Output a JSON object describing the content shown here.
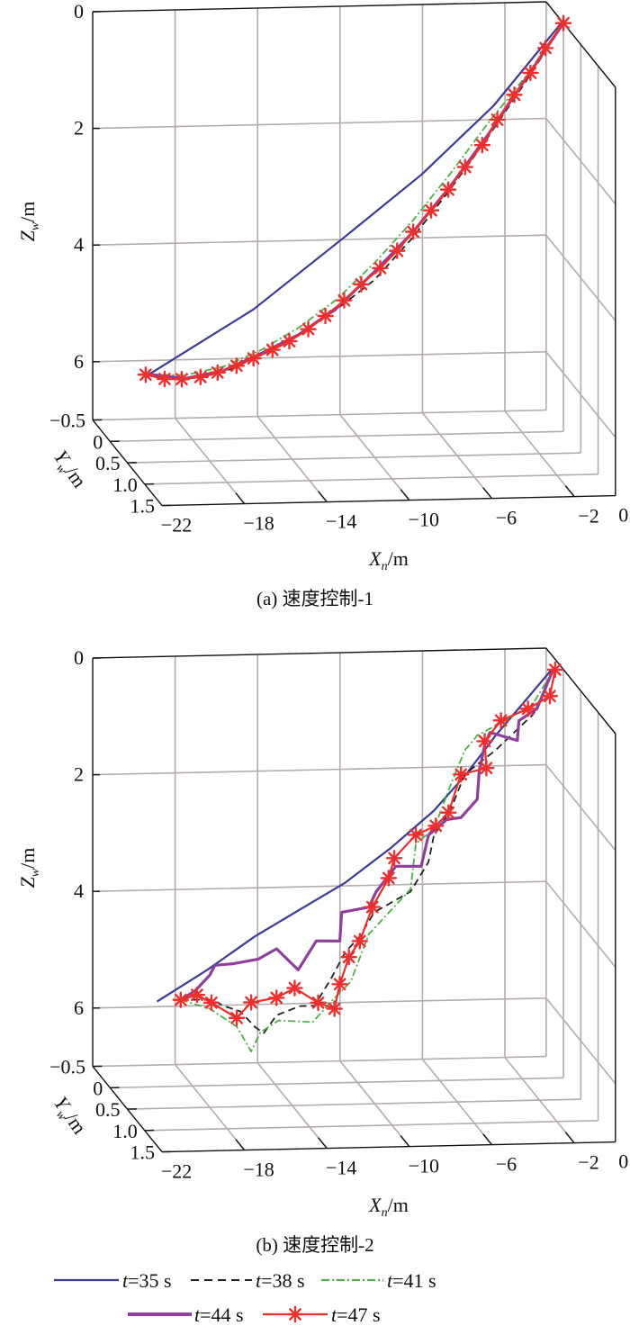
{
  "figure": {
    "captions": [
      "(a) 速度控制-1",
      "(b) 速度控制-2"
    ],
    "axis_labels": {
      "x": {
        "var": "X",
        "sub": "n",
        "unit": "/m"
      },
      "y": {
        "var": "Y",
        "sub": "w",
        "unit": "/m"
      },
      "z": {
        "var": "Z",
        "sub": "w",
        "unit": "/m"
      }
    },
    "legend": [
      {
        "var": "t",
        "text": "=35 s",
        "color": "#3b3a94",
        "style": "solid"
      },
      {
        "var": "t",
        "text": "=38 s",
        "color": "#222222",
        "style": "dashed"
      },
      {
        "var": "t",
        "text": "=41 s",
        "color": "#4fae47",
        "style": "dash-dot"
      },
      {
        "var": "t",
        "text": "=44 s",
        "color": "#8e3f9c",
        "style": "thick-solid"
      },
      {
        "var": "t",
        "text": "=47 s",
        "color": "#e8312f",
        "style": "solid-asterisk-markers"
      }
    ]
  },
  "chart_data": [
    {
      "type": "line3d",
      "caption": "(a) 速度控制-1",
      "xlabel": "Xn/m",
      "ylabel": "Yw/m",
      "zlabel": "Zw/m",
      "xlim": [
        -22,
        0
      ],
      "ylim": [
        -0.5,
        1.5
      ],
      "zlim": [
        0,
        7
      ],
      "z_reversed": true,
      "xticks": [
        "−22",
        "−18",
        "−14",
        "−10",
        "−6",
        "−2",
        "0"
      ],
      "xtick_values": [
        -22,
        -18,
        -14,
        -10,
        -6,
        -2,
        0
      ],
      "yticks": [
        "−0.5",
        "0",
        "0.5",
        "1.0",
        "1.5"
      ],
      "ytick_values": [
        -0.5,
        0,
        0.5,
        1.0,
        1.5
      ],
      "zticks": [
        "0",
        "2",
        "4",
        "6"
      ],
      "ztick_values": [
        0,
        2,
        4,
        6
      ],
      "grid": true,
      "series": [
        {
          "name": "t=35 s",
          "x": [
            -20.17,
            -19.99,
            -15.04,
            -10.64,
            -6.88,
            -3.39,
            -0.18,
            0
          ],
          "z": [
            5.87,
            5.84,
            4.79,
            3.59,
            2.54,
            1.39,
            0.03,
            0
          ]
        },
        {
          "name": "t=38 s",
          "x": [
            -20.17,
            -18.34,
            -16.51,
            -14.67,
            -12.84,
            -11.0,
            -9.17,
            -7.34,
            -5.5,
            -3.67,
            -1.83,
            0
          ],
          "z": [
            5.88,
            5.97,
            5.86,
            5.58,
            5.24,
            4.82,
            4.33,
            3.63,
            2.81,
            1.93,
            0.99,
            0
          ]
        },
        {
          "name": "t=41 s",
          "x": [
            -20.17,
            -18.34,
            -16.51,
            -14.67,
            -12.84,
            -11.0,
            -9.17,
            -7.34,
            -5.5,
            -3.67,
            -1.83,
            0
          ],
          "z": [
            5.87,
            5.89,
            5.76,
            5.49,
            5.12,
            4.65,
            4.04,
            3.34,
            2.54,
            1.69,
            0.9,
            0
          ]
        },
        {
          "name": "t=44 s",
          "x": [
            -20.17,
            -18.34,
            -16.51,
            -14.67,
            -12.84,
            -11.0,
            -9.17,
            -7.34,
            -5.5,
            -3.67,
            -1.83,
            0
          ],
          "z": [
            5.86,
            5.95,
            5.83,
            5.55,
            5.24,
            4.8,
            4.19,
            3.54,
            2.76,
            1.89,
            0.94,
            0
          ]
        },
        {
          "name": "t=47 s",
          "x": [
            -20.27,
            -19.35,
            -18.52,
            -17.61,
            -16.78,
            -15.86,
            -15.04,
            -14.12,
            -13.3,
            -12.38,
            -11.55,
            -10.64,
            -9.81,
            -8.89,
            -8.07,
            -7.29,
            -6.42,
            -5.59,
            -4.77,
            -3.94,
            -3.21,
            -2.38,
            -1.6,
            -0.87,
            0
          ],
          "z": [
            5.87,
            5.95,
            5.96,
            5.93,
            5.86,
            5.75,
            5.63,
            5.49,
            5.35,
            5.15,
            4.93,
            4.67,
            4.4,
            4.13,
            3.84,
            3.52,
            3.16,
            2.81,
            2.43,
            2.06,
            1.63,
            1.21,
            0.84,
            0.42,
            0
          ]
        }
      ]
    },
    {
      "type": "line3d",
      "caption": "(b) 速度控制-2",
      "xlabel": "Xn/m",
      "ylabel": "Yw/m",
      "zlabel": "Zw/m",
      "xlim": [
        -22,
        0
      ],
      "ylim": [
        -0.5,
        1.5
      ],
      "zlim": [
        0,
        7
      ],
      "z_reversed": true,
      "xticks": [
        "−22",
        "−18",
        "−14",
        "−10",
        "−6",
        "−2",
        "0"
      ],
      "xtick_values": [
        -22,
        -18,
        -14,
        -10,
        -6,
        -2,
        0
      ],
      "yticks": [
        "−0.5",
        "0",
        "0.5",
        "1.0",
        "1.5"
      ],
      "ytick_values": [
        -0.5,
        0,
        0.5,
        1.0,
        1.5
      ],
      "zticks": [
        "0",
        "2",
        "4",
        "6"
      ],
      "ztick_values": [
        0,
        2,
        4,
        6
      ],
      "grid": true,
      "series": [
        {
          "name": "t=35 s",
          "x": [
            -19.72,
            -17.3,
            -14.97,
            -12.8,
            -10.58,
            -8.4,
            -6.28,
            -4.7,
            -3.3,
            -1.8,
            -0.58,
            -0.4
          ],
          "z": [
            5.54,
            5.02,
            4.46,
            4.02,
            3.57,
            3.0,
            2.37,
            1.75,
            1.11,
            0.5,
            0,
            0
          ]
        },
        {
          "name": "t=38 s",
          "x": [
            -18.57,
            -17.08,
            -16.47,
            -15.68,
            -14.97,
            -14.54,
            -13.92,
            -12.78,
            -12.08,
            -11.29,
            -10.58,
            -9.88,
            -9.18,
            -7.42,
            -6.55,
            -6.28,
            -5.49,
            -4.79,
            -3.3,
            -1.45,
            -0.58,
            -0.4
          ],
          "z": [
            5.52,
            5.53,
            5.64,
            5.74,
            6.01,
            6.12,
            5.82,
            5.67,
            5.67,
            5.22,
            4.76,
            4.5,
            4.09,
            3.75,
            3.25,
            2.79,
            2.38,
            1.76,
            1.36,
            0.75,
            0.06,
            0
          ]
        },
        {
          "name": "t=41 s",
          "x": [
            -18.57,
            -17.17,
            -15.85,
            -15.15,
            -14.71,
            -13.83,
            -12.17,
            -11.2,
            -10.32,
            -9.44,
            -7.42,
            -7.16,
            -6.28,
            -5.4,
            -4.79,
            -4.18,
            -2.6,
            -1.45,
            -0.58,
            -0.4
          ],
          "z": [
            5.52,
            5.68,
            6.0,
            6.43,
            6.11,
            5.91,
            5.95,
            5.58,
            5.27,
            4.46,
            3.71,
            2.93,
            2.68,
            1.87,
            1.35,
            1.1,
            0.81,
            0.56,
            0.06,
            0
          ]
        },
        {
          "name": "t=44 s",
          "x": [
            -18.57,
            -17.87,
            -17.17,
            -16.91,
            -16.03,
            -14.8,
            -13.92,
            -12.87,
            -11.99,
            -10.85,
            -10.76,
            -9.44,
            -9.09,
            -8.13,
            -6.9,
            -6.55,
            -5.67,
            -4.97,
            -4.18,
            -4.09,
            -3.82,
            -3.56,
            -2.24,
            -2.16,
            -1.28,
            -0.58,
            -0.4
          ],
          "z": [
            5.52,
            5.37,
            5.11,
            4.94,
            4.92,
            4.85,
            4.68,
            5.05,
            4.56,
            4.57,
            4.08,
            4.0,
            3.74,
            3.31,
            3.32,
            2.79,
            2.53,
            2.5,
            2.19,
            1.72,
            1.26,
            1.05,
            1.2,
            0.86,
            0.66,
            0.06,
            0
          ]
        },
        {
          "name": "t=47 s",
          "x": [
            -18.57,
            -17.78,
            -17.08,
            -15.85,
            -15.15,
            -13.92,
            -13.04,
            -11.9,
            -11.11,
            -10.85,
            -10.41,
            -9.88,
            -9.27,
            -8.48,
            -8.21,
            -7.16,
            -6.19,
            -5.58,
            -4.97,
            -3.74,
            -3.82,
            -3.03,
            -1.72,
            -0.66,
            -0.4
          ],
          "z": [
            5.52,
            5.44,
            5.58,
            5.85,
            5.59,
            5.52,
            5.36,
            5.62,
            5.73,
            5.31,
            4.85,
            4.58,
            4.0,
            3.51,
            3.17,
            2.78,
            2.63,
            2.41,
            1.76,
            1.66,
            1.2,
            0.85,
            0.66,
            0.45,
            0
          ]
        }
      ]
    }
  ]
}
